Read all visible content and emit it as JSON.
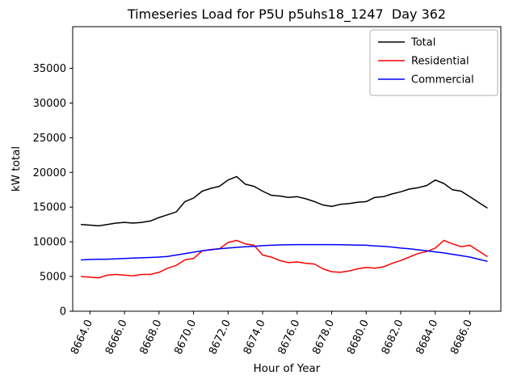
{
  "chart_data": {
    "type": "line",
    "title": "Timeseries Load for P5U p5uhs18_1247  Day 362",
    "xlabel": "Hour of Year",
    "ylabel": "kW total",
    "xlim": [
      8663.0,
      8687.8
    ],
    "ylim": [
      0,
      41000
    ],
    "grid": false,
    "legend_position": "upper right",
    "xticks": {
      "values": [
        8664,
        8666,
        8668,
        8670,
        8672,
        8674,
        8676,
        8678,
        8680,
        8682,
        8684,
        8686
      ],
      "labels": [
        "8664.0",
        "8666.0",
        "8668.0",
        "8670.0",
        "8672.0",
        "8674.0",
        "8676.0",
        "8678.0",
        "8680.0",
        "8682.0",
        "8684.0",
        "8686.0"
      ]
    },
    "yticks": {
      "values": [
        0,
        5000,
        10000,
        15000,
        20000,
        25000,
        30000,
        35000
      ],
      "labels": [
        "0",
        "5000",
        "10000",
        "15000",
        "20000",
        "25000",
        "30000",
        "35000"
      ]
    },
    "x": [
      8663.5,
      8664.0,
      8664.5,
      8665.0,
      8665.5,
      8666.0,
      8666.5,
      8667.0,
      8667.5,
      8668.0,
      8668.5,
      8669.0,
      8669.5,
      8670.0,
      8670.5,
      8671.0,
      8671.5,
      8672.0,
      8672.5,
      8673.0,
      8673.5,
      8674.0,
      8674.5,
      8675.0,
      8675.5,
      8676.0,
      8676.5,
      8677.0,
      8677.5,
      8678.0,
      8678.5,
      8679.0,
      8679.5,
      8680.0,
      8680.5,
      8681.0,
      8681.5,
      8682.0,
      8682.5,
      8683.0,
      8683.5,
      8684.0,
      8684.5,
      8685.0,
      8685.5,
      8686.0,
      8686.5,
      8687.0
    ],
    "series": [
      {
        "name": "Total",
        "color": "#000000",
        "values": [
          12500,
          12400,
          12300,
          12500,
          12700,
          12800,
          12700,
          12800,
          13000,
          13500,
          13900,
          14300,
          15800,
          16300,
          17300,
          17700,
          18000,
          18900,
          19400,
          18300,
          18000,
          17300,
          16700,
          16600,
          16400,
          16500,
          16200,
          15800,
          15300,
          15100,
          15400,
          15500,
          15700,
          15800,
          16400,
          16500,
          16900,
          17200,
          17600,
          17800,
          18100,
          18900,
          18400,
          17500,
          17300,
          16500,
          15700,
          14900
        ]
      },
      {
        "name": "Residential",
        "color": "#ff0000",
        "values": [
          5000,
          4900,
          4800,
          5200,
          5300,
          5200,
          5100,
          5300,
          5300,
          5600,
          6200,
          6600,
          7400,
          7600,
          8700,
          8900,
          9000,
          9900,
          10200,
          9700,
          9500,
          8100,
          7800,
          7300,
          7000,
          7100,
          6900,
          6800,
          6100,
          5700,
          5600,
          5800,
          6100,
          6300,
          6200,
          6400,
          6900,
          7300,
          7800,
          8300,
          8600,
          9100,
          10200,
          9700,
          9300,
          9500,
          8700,
          7900
        ]
      },
      {
        "name": "Commercial",
        "color": "#0000ff",
        "values": [
          7400,
          7450,
          7480,
          7500,
          7550,
          7600,
          7650,
          7700,
          7750,
          7800,
          7900,
          8100,
          8300,
          8500,
          8700,
          8850,
          9000,
          9100,
          9200,
          9300,
          9350,
          9450,
          9500,
          9550,
          9570,
          9600,
          9600,
          9600,
          9600,
          9600,
          9580,
          9550,
          9520,
          9500,
          9400,
          9350,
          9250,
          9100,
          9000,
          8850,
          8700,
          8550,
          8400,
          8200,
          8000,
          7800,
          7500,
          7200
        ]
      }
    ]
  }
}
